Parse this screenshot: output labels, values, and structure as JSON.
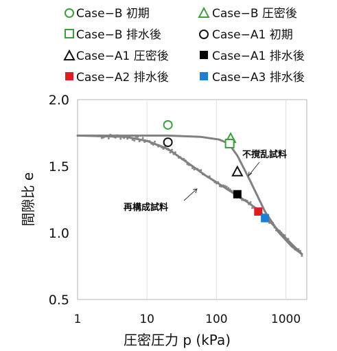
{
  "chart_data": {
    "type": "scatter",
    "xlabel": "圧密圧力 p (kPa)",
    "ylabel": "間隙比 e",
    "xscale": "log",
    "xlim": [
      1,
      2000
    ],
    "ylim": [
      0.5,
      2.0
    ],
    "x_ticks": [
      "1",
      "10",
      "100",
      "1000"
    ],
    "y_ticks": [
      "0.5",
      "1.0",
      "1.5",
      "2.0"
    ],
    "grid": "vertical",
    "legend_position": "top",
    "series": [
      {
        "name": "Case−B 初期",
        "marker": "circle-open",
        "color": "#3aa13a",
        "points": [
          [
            20,
            1.81
          ]
        ]
      },
      {
        "name": "Case−B 圧密後",
        "marker": "triangle-open",
        "color": "#3aa13a",
        "points": [
          [
            160,
            1.71
          ]
        ]
      },
      {
        "name": "Case−B 排水後",
        "marker": "square-open",
        "color": "#3aa13a",
        "points": [
          [
            155,
            1.67
          ]
        ]
      },
      {
        "name": "Case−A1 初期",
        "marker": "circle-open",
        "color": "#111111",
        "points": [
          [
            20,
            1.68
          ]
        ]
      },
      {
        "name": "Case−A1 圧密後",
        "marker": "triangle-open",
        "color": "#111111",
        "points": [
          [
            200,
            1.46
          ]
        ]
      },
      {
        "name": "Case−A1 排水後",
        "marker": "square-filled",
        "color": "#000000",
        "points": [
          [
            200,
            1.29
          ]
        ]
      },
      {
        "name": "Case−A2 排水後",
        "marker": "square-filled",
        "color": "#e11b22",
        "points": [
          [
            400,
            1.16
          ]
        ]
      },
      {
        "name": "Case−A3 排水後",
        "marker": "square-filled",
        "color": "#1f7fd0",
        "points": [
          [
            500,
            1.11
          ]
        ]
      }
    ],
    "curves": [
      {
        "color": "#808080",
        "points": [
          [
            1,
            1.73
          ],
          [
            20,
            1.73
          ],
          [
            60,
            1.72
          ],
          [
            110,
            1.7
          ],
          [
            150,
            1.67
          ],
          [
            200,
            1.58
          ],
          [
            300,
            1.4
          ],
          [
            500,
            1.16
          ],
          [
            800,
            1.0
          ],
          [
            1200,
            0.9
          ],
          [
            1700,
            0.84
          ]
        ]
      },
      {
        "color": "#808080",
        "points": [
          [
            1,
            1.73
          ],
          [
            5,
            1.72
          ],
          [
            10,
            1.69
          ],
          [
            20,
            1.63
          ],
          [
            40,
            1.52
          ],
          [
            70,
            1.43
          ],
          [
            100,
            1.38
          ],
          [
            150,
            1.32
          ],
          [
            200,
            1.28
          ],
          [
            300,
            1.22
          ],
          [
            400,
            1.17
          ],
          [
            600,
            1.08
          ],
          [
            1000,
            0.96
          ],
          [
            1700,
            0.84
          ]
        ]
      }
    ],
    "annotations": [
      "不撹乱試料",
      "再構成試料"
    ]
  }
}
